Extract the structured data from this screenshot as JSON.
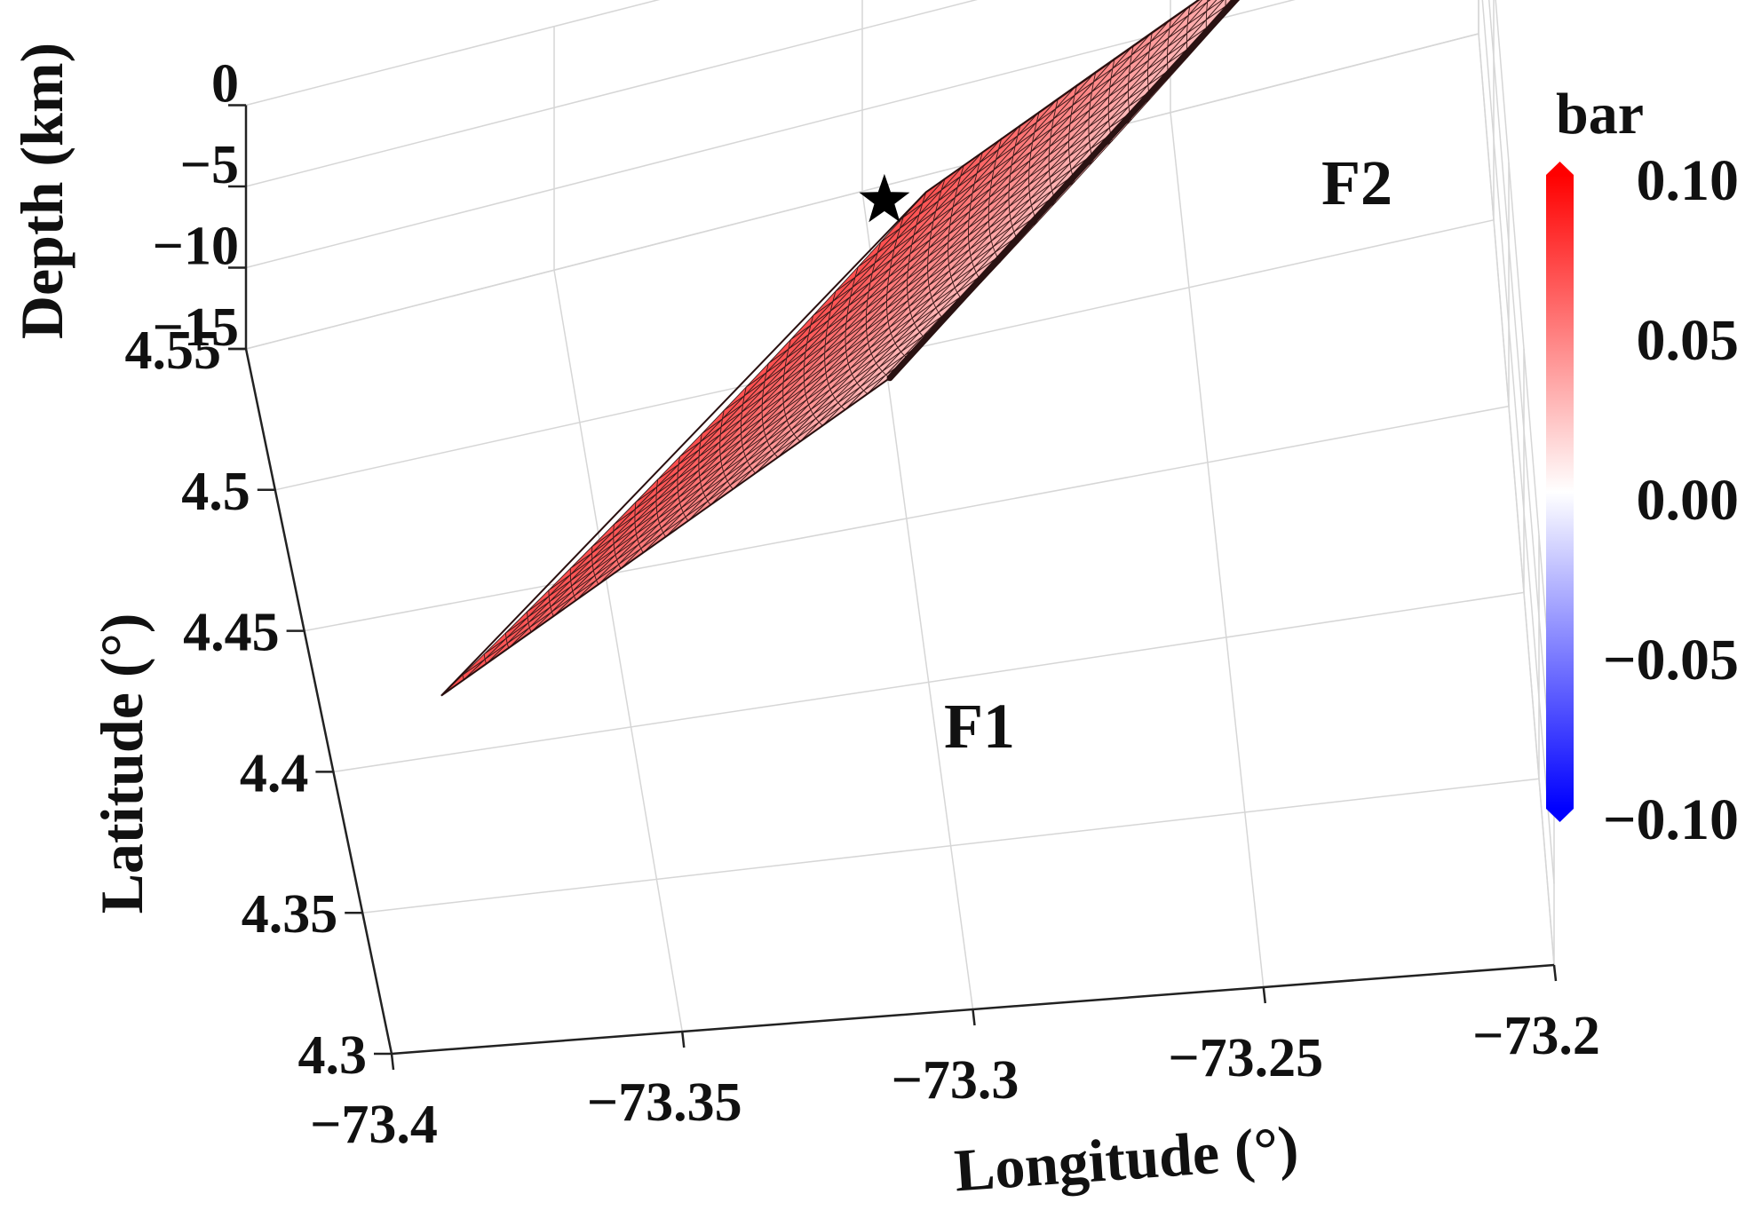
{
  "chart_data": {
    "type": "surface3d",
    "xlabel": "Longitude (°)",
    "ylabel": "Latitude (°)",
    "zlabel": "Depth (km)",
    "xlim": [
      -73.4,
      -73.2
    ],
    "ylim": [
      4.3,
      4.55
    ],
    "zlim": [
      -15,
      0
    ],
    "x_ticks": [
      "−73.4",
      "−73.35",
      "−73.3",
      "−73.25",
      "−73.2"
    ],
    "y_ticks": [
      "4.3",
      "4.35",
      "4.4",
      "4.45",
      "4.5",
      "4.55"
    ],
    "z_ticks": [
      "0",
      "−5",
      "−10",
      "−15"
    ],
    "grid": true,
    "colorbar": {
      "title": "bar",
      "range": [
        -0.1,
        0.1
      ],
      "ticks": [
        "0.10",
        "0.05",
        "0.00",
        "−0.05",
        "−0.10"
      ],
      "colors": [
        "#ff0000",
        "#ffffff",
        "#0000ff"
      ]
    },
    "fault_plane": {
      "corners": [
        {
          "lon": -73.305,
          "lat": 4.42,
          "depth": 0
        },
        {
          "lon": -73.23,
          "lat": 4.525,
          "depth": 0
        },
        {
          "lon": -73.29,
          "lat": 4.545,
          "depth": -15
        },
        {
          "lon": -73.38,
          "lat": 4.42,
          "depth": -15
        }
      ],
      "grid_cols": 22,
      "grid_rows": 20,
      "value_shallow": 0.025,
      "value_deep": 0.07
    },
    "fault_trace": {
      "start_label": "F1",
      "end_label": "F2"
    },
    "epicenter": {
      "lon": -73.3,
      "lat": 4.5,
      "marker": "star"
    }
  }
}
